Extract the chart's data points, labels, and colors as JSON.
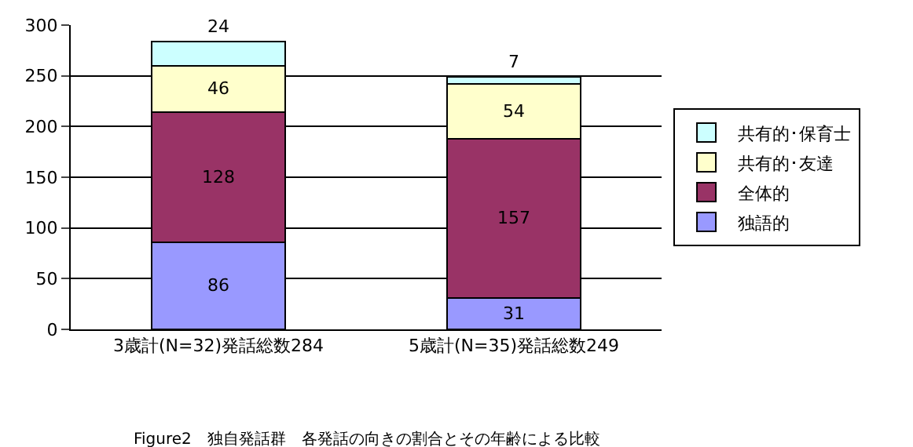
{
  "chart_data": {
    "type": "bar",
    "title": "Figure2　独自発話群　各発話の向きの割合とその年齢による比較",
    "categories": [
      "3歳計(N=32)発話総数284",
      "5歳計(N=35)発話総数249"
    ],
    "stacked": true,
    "data_labels": true,
    "grid": "y",
    "legend": "right",
    "ylim": [
      0,
      300
    ],
    "yticks": [
      0,
      50,
      100,
      150,
      200,
      250,
      300
    ],
    "series": [
      {
        "name": "独語的",
        "color": "#9999ff",
        "values": [
          86,
          31
        ]
      },
      {
        "name": "全体的",
        "color": "#993366",
        "values": [
          128,
          157
        ]
      },
      {
        "name": "共有的･友達",
        "color": "#ffffcc",
        "values": [
          46,
          54
        ]
      },
      {
        "name": "共有的･保育士",
        "color": "#ccffff",
        "values": [
          24,
          7
        ]
      }
    ]
  }
}
